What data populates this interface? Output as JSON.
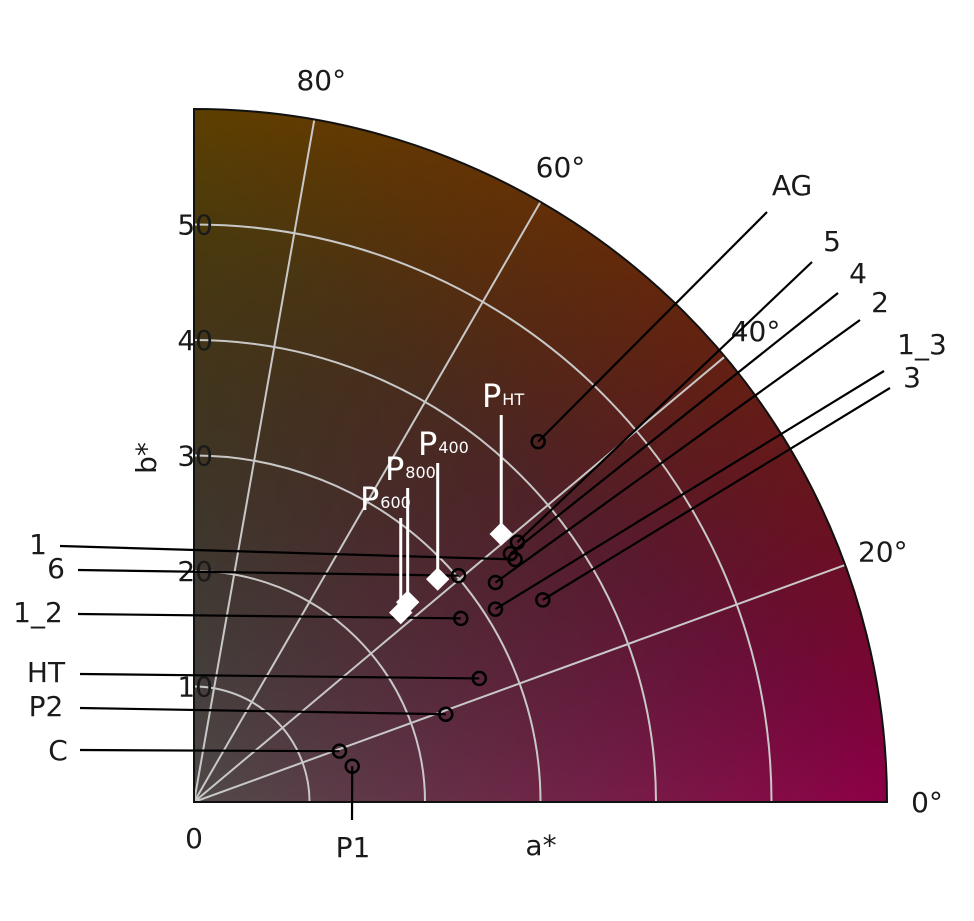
{
  "chart_data": {
    "type": "polar-scatter",
    "xlabel": "a*",
    "ylabel": "b*",
    "origin_label": "0",
    "radius_range": [
      0,
      60
    ],
    "angle_range_deg": [
      0,
      90
    ],
    "radial_ticks": [
      10,
      20,
      30,
      40,
      50
    ],
    "angle_ticks": [
      {
        "deg": 0,
        "label": "0°"
      },
      {
        "deg": 20,
        "label": "20°"
      },
      {
        "deg": 40,
        "label": "40°"
      },
      {
        "deg": 60,
        "label": "60°"
      },
      {
        "deg": 80,
        "label": "80°"
      }
    ],
    "grid": true,
    "samples": [
      {
        "label": "AG",
        "a": 29.8,
        "b": 31.2
      },
      {
        "label": "5",
        "a": 28.0,
        "b": 22.5
      },
      {
        "label": "4",
        "a": 27.4,
        "b": 21.5
      },
      {
        "label": "2",
        "a": 26.1,
        "b": 19.0
      },
      {
        "label": "1_3",
        "a": 26.1,
        "b": 16.7
      },
      {
        "label": "3",
        "a": 30.2,
        "b": 17.5
      },
      {
        "label": "1",
        "a": 27.8,
        "b": 21.0
      },
      {
        "label": "6",
        "a": 22.9,
        "b": 19.6
      },
      {
        "label": "1_2",
        "a": 23.1,
        "b": 15.9
      },
      {
        "label": "HT",
        "a": 24.7,
        "b": 10.7
      },
      {
        "label": "P2",
        "a": 21.8,
        "b": 7.6
      },
      {
        "label": "C",
        "a": 12.6,
        "b": 4.4
      },
      {
        "label": "P1",
        "a": 13.7,
        "b": 3.1
      }
    ],
    "polymers": [
      {
        "label": "P",
        "sub": "HT",
        "a": 26.6,
        "b": 23.2
      },
      {
        "label": "P",
        "sub": "400",
        "a": 21.1,
        "b": 19.3
      },
      {
        "label": "P",
        "sub": "800",
        "a": 18.5,
        "b": 17.3
      },
      {
        "label": "P",
        "sub": "600",
        "a": 17.9,
        "b": 16.4
      }
    ]
  }
}
